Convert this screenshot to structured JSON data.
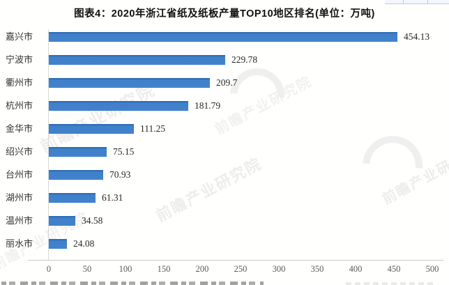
{
  "title": "图表4：2020年浙江省纸及纸板产量TOP10地区排名(单位：万吨)",
  "watermark": {
    "text": "前瞻产业研究院"
  },
  "chart_data": {
    "type": "bar",
    "orientation": "horizontal",
    "title": "图表4：2020年浙江省纸及纸板产量TOP10地区排名(单位：万吨)",
    "unit": "万吨",
    "categories": [
      "嘉兴市",
      "宁波市",
      "衢州市",
      "杭州市",
      "金华市",
      "绍兴市",
      "台州市",
      "湖州市",
      "温州市",
      "丽水市"
    ],
    "values": [
      454.13,
      229.78,
      209.7,
      181.79,
      111.25,
      75.15,
      70.93,
      61.31,
      34.58,
      24.08
    ],
    "value_labels": [
      "454.13",
      "229.78",
      "209.7",
      "181.79",
      "111.25",
      "75.15",
      "70.93",
      "61.31",
      "34.58",
      "24.08"
    ],
    "xlabel": "",
    "ylabel": "",
    "xlim": [
      0,
      500
    ],
    "x_ticks": [
      0,
      50,
      100,
      150,
      200,
      250,
      300,
      350,
      400,
      450,
      500
    ],
    "grid": false,
    "legend": false,
    "bar_color": "#3F80CA",
    "bar_edge_color": "#2D6BB4",
    "axis_line_color": "#D9D9D9",
    "tick_label_color": "#595959",
    "label_color": "#333333"
  }
}
